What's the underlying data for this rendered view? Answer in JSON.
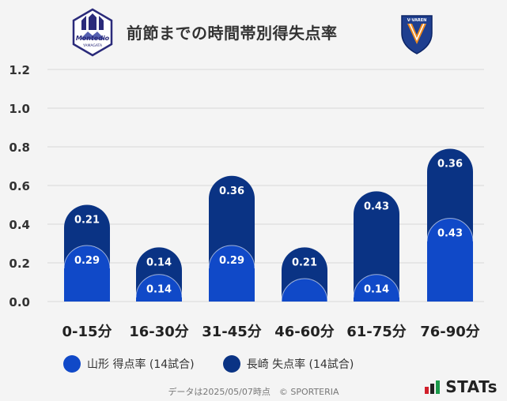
{
  "title": "前節までの時間帯別得失点率",
  "logos": {
    "left_icon": "montedio-yamagata-crest-icon",
    "right_icon": "v-varen-nagasaki-crest-icon",
    "left_text": "Montedio",
    "left_subtext": "YAMAGATA",
    "right_text": "V·VAREN"
  },
  "colors": {
    "yamagata": "#1049c8",
    "nagasaki": "#0a3384",
    "grid": "#d9d9d9",
    "background": "#f4f4f4"
  },
  "chart_data": {
    "type": "bar",
    "categories": [
      "0-15分",
      "16-30分",
      "31-45分",
      "46-60分",
      "61-75分",
      "76-90分"
    ],
    "series": [
      {
        "name": "山形 得点率 (14試合)",
        "values": [
          0.29,
          0.14,
          0.29,
          0.07,
          0.14,
          0.43
        ]
      },
      {
        "name": "長崎 失点率 (14試合)",
        "values": [
          0.21,
          0.14,
          0.36,
          0.21,
          0.43,
          0.36
        ]
      }
    ],
    "data_labels": {
      "yamagata": [
        "0.29",
        "0.14",
        "0.29",
        "",
        "0.14",
        "0.43"
      ],
      "nagasaki": [
        "0.21",
        "0.14",
        "0.36",
        "0.21",
        "0.43",
        "0.36"
      ]
    },
    "y_ticks": [
      "0.0",
      "0.2",
      "0.4",
      "0.6",
      "0.8",
      "1.0",
      "1.2"
    ],
    "ylim": [
      0,
      1.2
    ],
    "stacked": true,
    "grid": true,
    "legend_position": "bottom-left"
  },
  "legend": {
    "yamagata_label": "山形 得点率 (14試合)",
    "nagasaki_label": "長崎 失点率 (14試合)"
  },
  "footer": "データは2025/05/07時点　© SPORTERIA",
  "brand": "STATs"
}
